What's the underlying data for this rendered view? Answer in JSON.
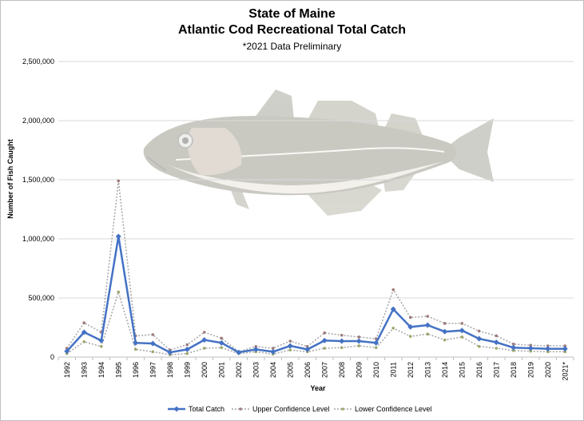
{
  "chart_data": {
    "type": "line",
    "title": "State of Maine",
    "subtitle": "Atlantic Cod Recreational Total Catch",
    "note": "*2021 Data Preliminary",
    "xlabel": "Year",
    "ylabel": "Number of Fish Caught",
    "ylim": [
      0,
      2500000
    ],
    "yticks": [
      0,
      500000,
      1000000,
      1500000,
      2000000,
      2500000
    ],
    "ytick_labels": [
      "0",
      "500,000",
      "1,000,000",
      "1,500,000",
      "2,000,000",
      "2,500,000"
    ],
    "grid": true,
    "legend_position": "bottom",
    "categories": [
      "1992",
      "1993",
      "1994",
      "1995",
      "1996",
      "1997",
      "1998",
      "1999",
      "2000",
      "2001",
      "2002",
      "2003",
      "2004",
      "2005",
      "2006",
      "2007",
      "2008",
      "2009",
      "2010",
      "2011",
      "2012",
      "2013",
      "2014",
      "2015",
      "2016",
      "2017",
      "2018",
      "2019",
      "2020",
      "2021*"
    ],
    "series": [
      {
        "name": "Total Catch",
        "color": "#4472c4",
        "style": "solid",
        "values": [
          50000,
          210000,
          140000,
          1020000,
          120000,
          115000,
          40000,
          65000,
          145000,
          120000,
          40000,
          65000,
          45000,
          95000,
          65000,
          140000,
          135000,
          135000,
          120000,
          405000,
          255000,
          270000,
          215000,
          225000,
          155000,
          125000,
          80000,
          75000,
          70000,
          70000
        ]
      },
      {
        "name": "Upper Confidence Level",
        "color": "#9e7b7b",
        "style": "dotted",
        "values": [
          75000,
          290000,
          210000,
          1490000,
          180000,
          190000,
          60000,
          105000,
          210000,
          160000,
          45000,
          90000,
          75000,
          135000,
          90000,
          205000,
          185000,
          170000,
          155000,
          570000,
          335000,
          345000,
          285000,
          285000,
          220000,
          180000,
          110000,
          100000,
          95000,
          95000
        ]
      },
      {
        "name": "Lower Confidence Level",
        "color": "#9aa86a",
        "style": "dotted",
        "values": [
          30000,
          130000,
          90000,
          550000,
          65000,
          45000,
          20000,
          30000,
          75000,
          80000,
          30000,
          45000,
          25000,
          60000,
          45000,
          75000,
          80000,
          95000,
          80000,
          245000,
          175000,
          195000,
          145000,
          170000,
          90000,
          75000,
          55000,
          50000,
          45000,
          45000
        ]
      }
    ],
    "illustration": "atlantic-cod-fish-icon"
  }
}
